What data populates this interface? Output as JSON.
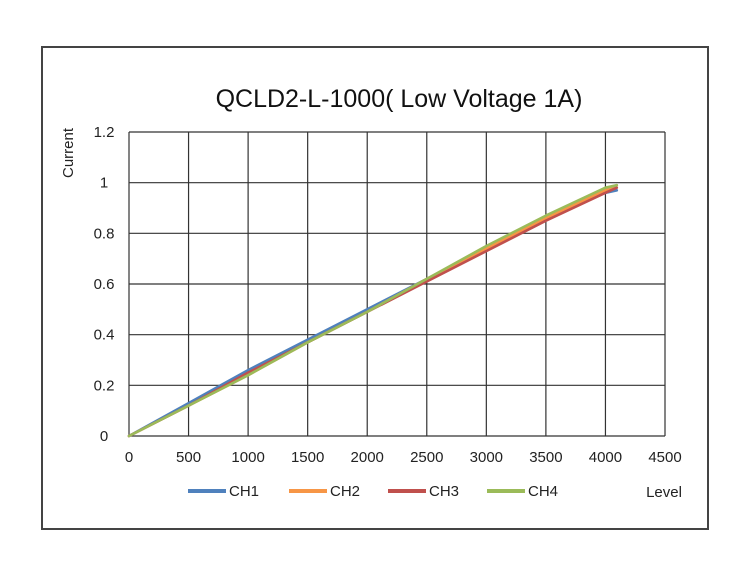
{
  "chart_data": {
    "type": "line",
    "title": "QCLD2-L-1000( Low Voltage 1A)",
    "ylabel": "Current",
    "xlabel": "Level",
    "xlim": [
      0,
      4500
    ],
    "ylim": [
      0,
      1.2
    ],
    "xticks": [
      "0",
      "500",
      "1000",
      "1500",
      "2000",
      "2500",
      "3000",
      "3500",
      "4000",
      "4500"
    ],
    "yticks": [
      "0",
      "0.2",
      "0.4",
      "0.6",
      "0.8",
      "1",
      "1.2"
    ],
    "grid": true,
    "legend_position": "bottom",
    "series": [
      {
        "name": "CH1",
        "color": "#4f81bd",
        "points": [
          [
            0,
            0
          ],
          [
            500,
            0.13
          ],
          [
            1000,
            0.26
          ],
          [
            1500,
            0.38
          ],
          [
            2000,
            0.5
          ],
          [
            2500,
            0.62
          ],
          [
            3000,
            0.74
          ],
          [
            3500,
            0.86
          ],
          [
            4000,
            0.96
          ],
          [
            4095,
            0.97
          ]
        ]
      },
      {
        "name": "CH2",
        "color": "#f79646",
        "points": [
          [
            0,
            0
          ],
          [
            500,
            0.12
          ],
          [
            1000,
            0.24
          ],
          [
            1500,
            0.37
          ],
          [
            2000,
            0.49
          ],
          [
            2500,
            0.62
          ],
          [
            3000,
            0.74
          ],
          [
            3500,
            0.86
          ],
          [
            4000,
            0.97
          ],
          [
            4095,
            0.99
          ]
        ]
      },
      {
        "name": "CH3",
        "color": "#c0504d",
        "points": [
          [
            0,
            0
          ],
          [
            500,
            0.12
          ],
          [
            1000,
            0.25
          ],
          [
            1500,
            0.37
          ],
          [
            2000,
            0.49
          ],
          [
            2500,
            0.61
          ],
          [
            3000,
            0.73
          ],
          [
            3500,
            0.85
          ],
          [
            4000,
            0.96
          ],
          [
            4095,
            0.98
          ]
        ]
      },
      {
        "name": "CH4",
        "color": "#9bbb59",
        "points": [
          [
            0,
            0
          ],
          [
            500,
            0.12
          ],
          [
            1000,
            0.24
          ],
          [
            1500,
            0.37
          ],
          [
            2000,
            0.49
          ],
          [
            2500,
            0.62
          ],
          [
            3000,
            0.75
          ],
          [
            3500,
            0.87
          ],
          [
            4000,
            0.98
          ],
          [
            4095,
            0.99
          ]
        ]
      }
    ]
  }
}
